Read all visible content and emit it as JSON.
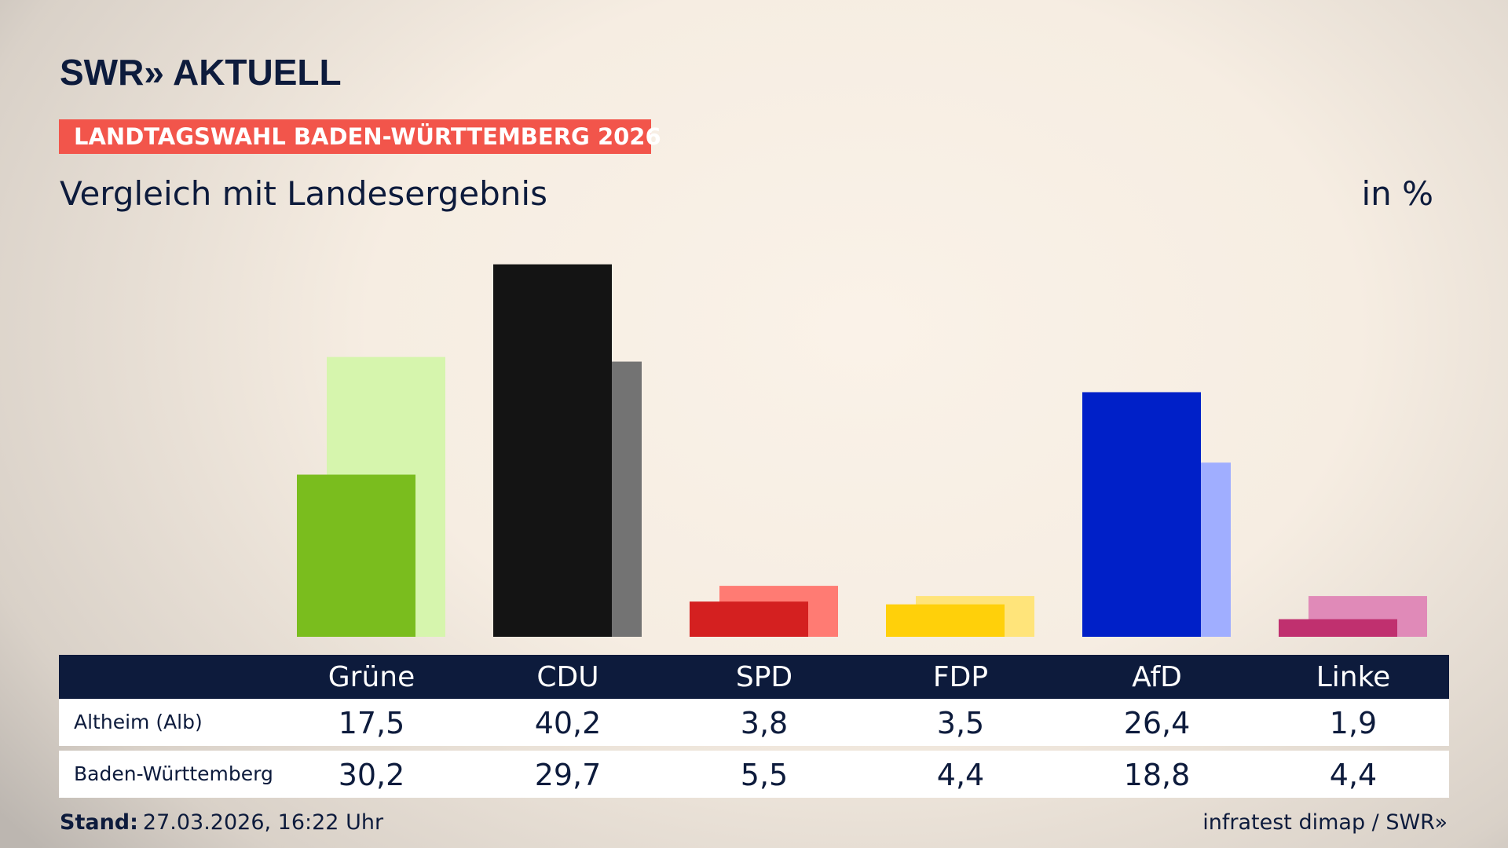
{
  "brand": "SWR» AKTUELL",
  "banner": "LANDTAGSWAHL BADEN-WÜRTTEMBERG 2026",
  "chart_data": {
    "type": "bar",
    "title": "Vergleich mit Landesergebnis",
    "unit_label": "in %",
    "categories": [
      "Grüne",
      "CDU",
      "SPD",
      "FDP",
      "AfD",
      "Linke"
    ],
    "series": [
      {
        "name": "Altheim (Alb)",
        "colors": [
          "#7abd1e",
          "#141414",
          "#d42020",
          "#ffd00a",
          "#0020c8",
          "#c0306f"
        ],
        "values": [
          17.5,
          40.2,
          3.8,
          3.5,
          26.4,
          1.9
        ],
        "value_labels": [
          "17,5",
          "40,2",
          "3,8",
          "3,5",
          "26,4",
          "1,9"
        ]
      },
      {
        "name": "Baden-Württemberg",
        "colors": [
          "#d6f5ad",
          "#737373",
          "#ff7b73",
          "#ffe47a",
          "#a0aeff",
          "#e08ab8"
        ],
        "values": [
          30.2,
          29.7,
          5.5,
          4.4,
          18.8,
          4.4
        ],
        "value_labels": [
          "30,2",
          "29,7",
          "5,5",
          "4,4",
          "18,8",
          "4,4"
        ]
      }
    ],
    "ylim": [
      0,
      45
    ]
  },
  "footer": {
    "stand_label": "Stand:",
    "stand_value": "27.03.2026, 16:22 Uhr",
    "source": "infratest dimap / SWR»"
  }
}
